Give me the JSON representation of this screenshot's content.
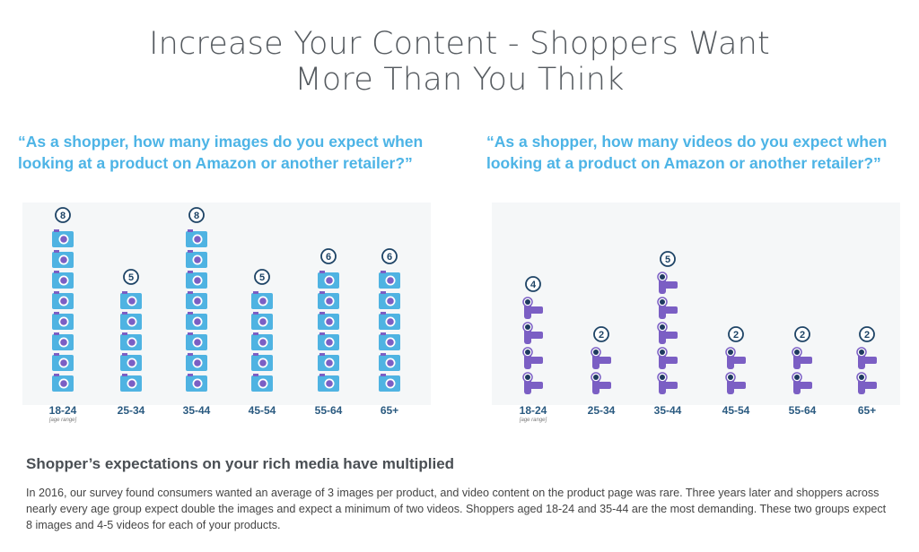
{
  "title": {
    "line1": "Increase Your Content - Shoppers Want",
    "line2": "More Than You Think"
  },
  "colors": {
    "title": "#555a5f",
    "question": "#4db4e6",
    "camera_body": "#4fb3e2",
    "camera_lens": "#7b5fc4",
    "video_body": "#7b5fc4",
    "video_lens": "#1e3a5f",
    "badge_stroke": "#1e4466",
    "panel_bg": "#f5f7f8"
  },
  "chart_data": [
    {
      "type": "bar",
      "title": "“As a shopper, how many images do you expect when looking at a product on Amazon or another retailer?”",
      "icon": "camera-icon",
      "categories": [
        "18-24",
        "25-34",
        "35-44",
        "45-54",
        "55-64",
        "65+"
      ],
      "values": [
        8,
        5,
        8,
        5,
        6,
        6
      ],
      "axis_note": "[age range]"
    },
    {
      "type": "bar",
      "title": "“As a shopper, how many videos do you expect when looking at a product on Amazon or another retailer?”",
      "icon": "video-camera-icon",
      "categories": [
        "18-24",
        "25-34",
        "35-44",
        "45-54",
        "55-64",
        "65+"
      ],
      "values": [
        4,
        2,
        5,
        2,
        2,
        2
      ],
      "axis_note": "[age range]"
    }
  ],
  "summary": {
    "heading": "Shopper’s expectations on your rich media have multiplied",
    "body": "In 2016, our survey found consumers wanted an average of 3 images per product, and video content on the product page was rare. Three years later and shoppers across nearly every age group expect double the images and expect a minimum of two videos. Shoppers aged 18-24 and 35-44 are the most demanding. These two groups expect 8 images and 4-5 videos for each of your products."
  }
}
